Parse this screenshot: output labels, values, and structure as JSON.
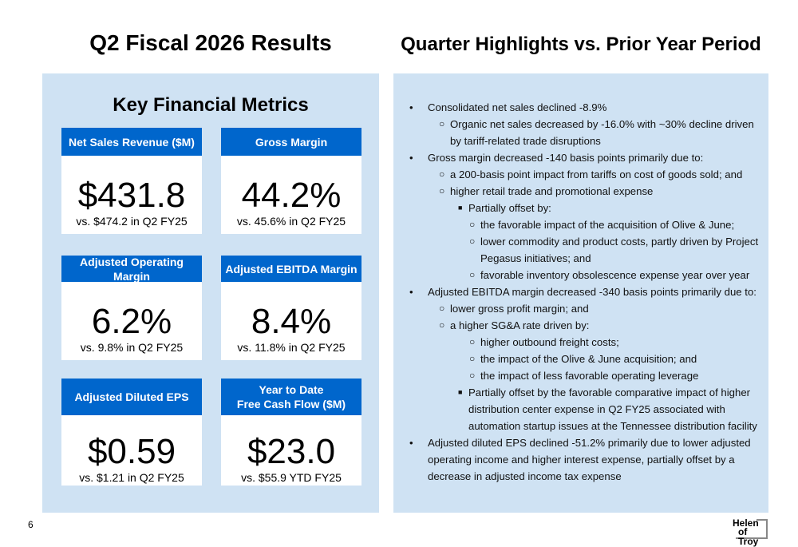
{
  "left_title": "Q2 Fiscal 2026 Results",
  "right_title": "Quarter Highlights vs. Prior Year Period",
  "metrics_title": "Key Financial Metrics",
  "cards": [
    {
      "header": "Net Sales Revenue ($M)",
      "value": "$431.8",
      "compare": "vs. $474.2 in Q2 FY25"
    },
    {
      "header": "Gross Margin",
      "value": "44.2%",
      "compare": "vs. 45.6% in Q2 FY25"
    },
    {
      "header": "Adjusted Operating Margin",
      "value": "6.2%",
      "compare": "vs. 9.8% in Q2 FY25"
    },
    {
      "header": "Adjusted EBITDA Margin",
      "value": "8.4%",
      "compare": "vs. 11.8% in Q2 FY25"
    },
    {
      "header": "Adjusted Diluted EPS",
      "value": "$0.59",
      "compare": "vs. $1.21 in Q2 FY25"
    },
    {
      "header": "Year to Date\nFree Cash Flow ($M)",
      "value": "$23.0",
      "compare": "vs. $55.9 YTD FY25"
    }
  ],
  "highlights": [
    {
      "level": 1,
      "text": "Consolidated net sales declined -8.9%"
    },
    {
      "level": 2,
      "text": "Organic net sales decreased by -16.0% with ~30% decline driven by tariff-related trade disruptions"
    },
    {
      "level": 1,
      "text": "Gross margin decreased -140 basis points primarily due to:"
    },
    {
      "level": 2,
      "text": "a 200-basis point impact from tariffs on cost of goods sold; and"
    },
    {
      "level": 2,
      "text": "higher retail trade and promotional expense"
    },
    {
      "level": 3,
      "text": "Partially offset by:"
    },
    {
      "level": 4,
      "text": "the favorable impact of the acquisition of Olive & June;"
    },
    {
      "level": 4,
      "text": "lower commodity and product costs, partly driven by Project Pegasus initiatives; and"
    },
    {
      "level": 4,
      "text": "favorable inventory obsolescence expense year over year"
    },
    {
      "level": 1,
      "text": "Adjusted EBITDA margin decreased -340 basis points primarily due to:"
    },
    {
      "level": 2,
      "text": "lower gross profit margin; and"
    },
    {
      "level": 2,
      "text": "a higher SG&A rate driven by:"
    },
    {
      "level": 4,
      "text": "higher outbound freight costs;"
    },
    {
      "level": 4,
      "text": "the impact of the Olive & June acquisition; and"
    },
    {
      "level": 4,
      "text": "the impact of less favorable operating leverage"
    },
    {
      "level": 3,
      "text": "Partially offset by the favorable comparative impact of higher distribution center expense in Q2 FY25 associated with automation startup issues at the Tennessee distribution facility"
    },
    {
      "level": 1,
      "text": "Adjusted diluted EPS declined -51.2% primarily due to lower adjusted operating income and higher interest expense, partially offset by a decrease in adjusted income tax expense"
    }
  ],
  "page_number": "6",
  "logo_text": "Helen of Troy",
  "colors": {
    "header_blue": "#0066cc",
    "panel": "#cfe2f3"
  }
}
